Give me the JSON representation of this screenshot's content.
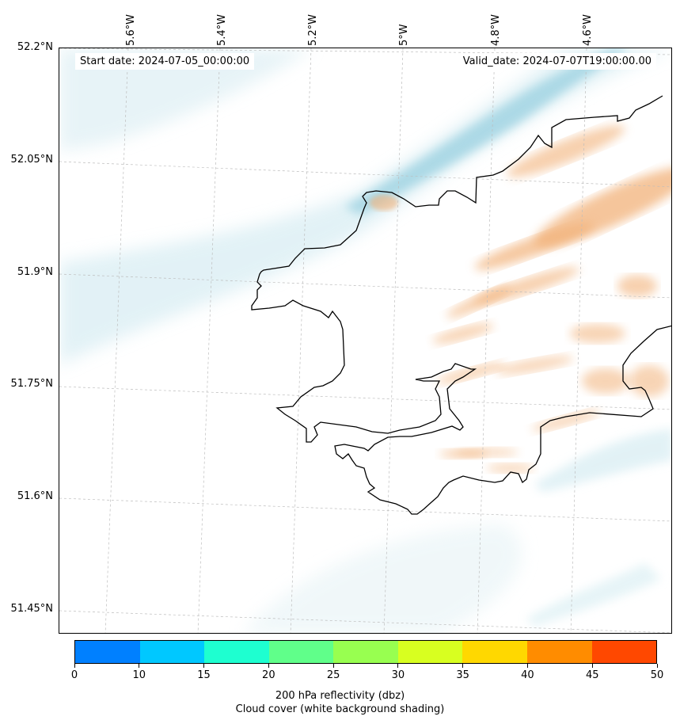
{
  "header": {
    "start_date": "Start date: 2024-07-05_00:00:00",
    "valid_date": "Valid_date: 2024-07-07T19:00:00.00"
  },
  "axes": {
    "longitude_labels": [
      "5.6°W",
      "5.4°W",
      "5.2°W",
      "5°W",
      "4.8°W",
      "4.6°W"
    ],
    "latitude_labels": [
      "52.2°N",
      "52.05°N",
      "51.9°N",
      "51.75°N",
      "51.6°N",
      "51.45°N"
    ]
  },
  "colorbar": {
    "tick_labels": [
      "0",
      "10",
      "15",
      "20",
      "25",
      "30",
      "35",
      "40",
      "45",
      "50"
    ],
    "colors": [
      "#0080ff",
      "#00c8ff",
      "#1effd0",
      "#60ff8a",
      "#98ff50",
      "#d8ff20",
      "#ffd800",
      "#ff8c00",
      "#ff4800"
    ],
    "label": "200 hPa reflectivity (dbz)",
    "sublabel": "Cloud cover (white background shading)"
  },
  "icons": {
    "coastline": "coastline-icon",
    "cloud": "cloud-shading-icon",
    "precip": "reflectivity-shading-icon"
  }
}
